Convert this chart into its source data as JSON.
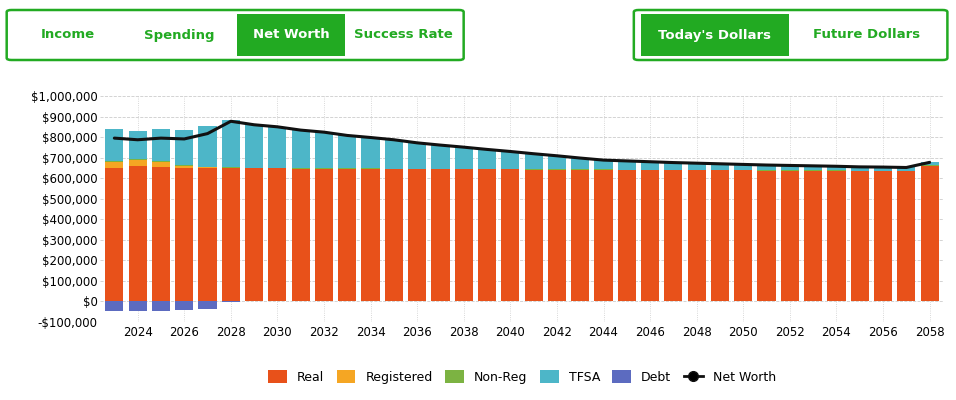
{
  "years": [
    2023,
    2024,
    2025,
    2026,
    2027,
    2028,
    2029,
    2030,
    2031,
    2032,
    2033,
    2034,
    2035,
    2036,
    2037,
    2038,
    2039,
    2040,
    2041,
    2042,
    2043,
    2044,
    2045,
    2046,
    2047,
    2048,
    2049,
    2050,
    2051,
    2052,
    2053,
    2054,
    2055,
    2056,
    2057,
    2058
  ],
  "real": [
    650000,
    660000,
    655000,
    650000,
    648000,
    650000,
    648000,
    648000,
    647000,
    647000,
    646000,
    646000,
    645000,
    645000,
    644000,
    644000,
    643000,
    643000,
    642000,
    642000,
    641000,
    641000,
    640000,
    640000,
    639000,
    639000,
    638000,
    638000,
    637000,
    637000,
    636000,
    636000,
    635000,
    635000,
    634000,
    660000
  ],
  "registered": [
    30000,
    28000,
    25000,
    10000,
    5000,
    0,
    0,
    0,
    0,
    0,
    0,
    0,
    0,
    0,
    0,
    0,
    0,
    0,
    0,
    0,
    0,
    0,
    0,
    0,
    0,
    0,
    0,
    0,
    0,
    0,
    0,
    0,
    0,
    0,
    0,
    0
  ],
  "nonreg": [
    5000,
    4000,
    5000,
    3000,
    2000,
    2000,
    2000,
    2000,
    2000,
    2000,
    2000,
    2000,
    2000,
    2000,
    2000,
    2000,
    2000,
    2000,
    2000,
    2000,
    2000,
    2000,
    2000,
    2000,
    2000,
    2000,
    2000,
    2000,
    2000,
    2000,
    2000,
    2000,
    2000,
    2000,
    2000,
    2000
  ],
  "tfsa": [
    155000,
    140000,
    155000,
    170000,
    200000,
    230000,
    210000,
    200000,
    185000,
    175000,
    160000,
    150000,
    140000,
    125000,
    115000,
    105000,
    95000,
    85000,
    75000,
    65000,
    55000,
    45000,
    42000,
    38000,
    35000,
    32000,
    30000,
    27000,
    25000,
    23000,
    22000,
    20000,
    18000,
    17000,
    16000,
    15000
  ],
  "debt": [
    -45000,
    -45000,
    -45000,
    -42000,
    -38000,
    -5000,
    0,
    0,
    0,
    0,
    0,
    0,
    0,
    0,
    0,
    0,
    0,
    0,
    0,
    0,
    0,
    0,
    0,
    0,
    0,
    0,
    0,
    0,
    0,
    0,
    0,
    0,
    0,
    0,
    0,
    0
  ],
  "net_worth": [
    795000,
    787000,
    795000,
    791000,
    817000,
    877000,
    860000,
    850000,
    834000,
    824000,
    808000,
    798000,
    787000,
    772000,
    761000,
    751000,
    740000,
    730000,
    719000,
    709000,
    698000,
    688000,
    684000,
    680000,
    676000,
    673000,
    670000,
    667000,
    664000,
    662000,
    660000,
    658000,
    655000,
    654000,
    652000,
    677000
  ],
  "colors": {
    "real": "#E8511A",
    "registered": "#F5A623",
    "nonreg": "#7CB342",
    "tfsa": "#4DB6C8",
    "debt": "#5C6BC0",
    "net_worth": "#111111"
  },
  "ylim": [
    -100000,
    1000000
  ],
  "yticks": [
    -100000,
    0,
    100000,
    200000,
    300000,
    400000,
    500000,
    600000,
    700000,
    800000,
    900000,
    1000000
  ],
  "background_color": "#ffffff",
  "grid_color": "#cccccc",
  "tab_labels": [
    "Income",
    "Spending",
    "Net Worth",
    "Success Rate"
  ],
  "tab_active": 2,
  "tab2_labels": [
    "Today's Dollars",
    "Future Dollars"
  ],
  "tab2_active": 0,
  "legend_labels": [
    "Real",
    "Registered",
    "Non-Reg",
    "TFSA",
    "Debt",
    "Net Worth"
  ],
  "green": "#22aa22",
  "white": "#ffffff"
}
